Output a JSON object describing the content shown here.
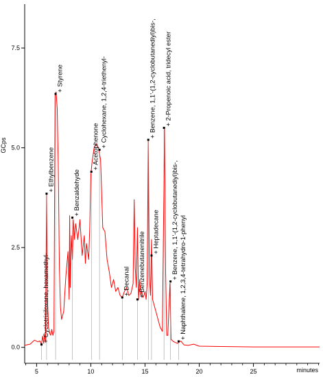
{
  "chart_data": {
    "type": "line",
    "ylabel": "GCps",
    "xlabel": "minutes",
    "xlim": [
      3.9,
      31.1
    ],
    "ylim": [
      -0.4,
      8.6
    ],
    "x_ticks": [
      5,
      10,
      15,
      20,
      25
    ],
    "y_ticks": [
      0.0,
      2.5,
      5.0,
      7.5
    ],
    "y_tick_labels": [
      "0.0",
      "2.5",
      "5.0",
      "7.5"
    ],
    "grid": false,
    "line_color": "#ff0000",
    "series": [
      {
        "values": [
          [
            3.9,
            0.05
          ],
          [
            4.4,
            0.08
          ],
          [
            4.8,
            0.18
          ],
          [
            5.1,
            0.14
          ],
          [
            5.3,
            0.16
          ],
          [
            5.45,
            0.07
          ],
          [
            5.55,
            0.28
          ],
          [
            5.65,
            0.1
          ],
          [
            5.75,
            0.32
          ],
          [
            5.82,
            0.15
          ],
          [
            5.92,
            3.85
          ],
          [
            6.0,
            1.2
          ],
          [
            6.1,
            0.5
          ],
          [
            6.2,
            0.35
          ],
          [
            6.3,
            0.3
          ],
          [
            6.4,
            0.45
          ],
          [
            6.5,
            0.3
          ],
          [
            6.6,
            0.4
          ],
          [
            6.7,
            6.3
          ],
          [
            6.8,
            6.4
          ],
          [
            6.9,
            6.0
          ],
          [
            7.0,
            4.5
          ],
          [
            7.1,
            2.0
          ],
          [
            7.2,
            1.0
          ],
          [
            7.3,
            0.7
          ],
          [
            7.5,
            0.9
          ],
          [
            7.7,
            1.8
          ],
          [
            7.9,
            2.4
          ],
          [
            8.0,
            1.2
          ],
          [
            8.05,
            3.3
          ],
          [
            8.1,
            1.5
          ],
          [
            8.2,
            2.8
          ],
          [
            8.3,
            2.2
          ],
          [
            8.4,
            3.2
          ],
          [
            8.5,
            2.7
          ],
          [
            8.6,
            3.1
          ],
          [
            8.8,
            2.7
          ],
          [
            9.0,
            3.2
          ],
          [
            9.2,
            2.3
          ],
          [
            9.4,
            2.8
          ],
          [
            9.5,
            2.1
          ],
          [
            9.6,
            2.6
          ],
          [
            9.8,
            2.2
          ],
          [
            9.9,
            3.0
          ],
          [
            10.0,
            4.3
          ],
          [
            10.1,
            4.6
          ],
          [
            10.2,
            4.8
          ],
          [
            10.3,
            5.0
          ],
          [
            10.5,
            5.1
          ],
          [
            10.7,
            5.0
          ],
          [
            10.9,
            4.7
          ],
          [
            11.0,
            3.9
          ],
          [
            11.1,
            3.0
          ],
          [
            11.3,
            2.9
          ],
          [
            11.5,
            2.2
          ],
          [
            11.7,
            1.9
          ],
          [
            11.9,
            1.5
          ],
          [
            12.1,
            1.7
          ],
          [
            12.3,
            1.4
          ],
          [
            12.5,
            1.5
          ],
          [
            12.7,
            1.3
          ],
          [
            12.9,
            1.25
          ],
          [
            13.1,
            1.4
          ],
          [
            13.3,
            1.5
          ],
          [
            13.5,
            1.3
          ],
          [
            13.7,
            1.35
          ],
          [
            13.9,
            1.6
          ],
          [
            14.0,
            3.7
          ],
          [
            14.1,
            2.0
          ],
          [
            14.2,
            1.5
          ],
          [
            14.3,
            3.0
          ],
          [
            14.4,
            1.2
          ],
          [
            14.5,
            1.7
          ],
          [
            14.6,
            1.3
          ],
          [
            14.7,
            1.4
          ],
          [
            14.8,
            1.25
          ],
          [
            14.9,
            1.3
          ],
          [
            15.0,
            1.4
          ],
          [
            15.1,
            1.2
          ],
          [
            15.2,
            1.6
          ],
          [
            15.3,
            5.2
          ],
          [
            15.4,
            1.8
          ],
          [
            15.5,
            1.3
          ],
          [
            15.6,
            2.7
          ],
          [
            15.7,
            1.2
          ],
          [
            15.8,
            1.1
          ],
          [
            15.9,
            1.0
          ],
          [
            16.0,
            0.9
          ],
          [
            16.2,
            0.7
          ],
          [
            16.4,
            0.5
          ],
          [
            16.6,
            0.4
          ],
          [
            16.8,
            5.5
          ],
          [
            16.9,
            1.9
          ],
          [
            17.0,
            0.3
          ],
          [
            17.1,
            0.3
          ],
          [
            17.3,
            1.6
          ],
          [
            17.4,
            0.2
          ],
          [
            17.6,
            0.15
          ],
          [
            17.8,
            0.12
          ],
          [
            18.0,
            0.1
          ],
          [
            18.3,
            0.16
          ],
          [
            18.6,
            0.06
          ],
          [
            19.0,
            0.05
          ],
          [
            19.5,
            0.08
          ],
          [
            20.0,
            0.03
          ],
          [
            22.0,
            0.02
          ],
          [
            25.0,
            0.01
          ],
          [
            28.0,
            0.01
          ],
          [
            31.1,
            0.01
          ]
        ]
      }
    ],
    "annotations": [
      {
        "text": "+ Cyclotrisiloxane, hexamethyl-",
        "x": 5.45,
        "y": 0.07
      },
      {
        "text": "+ Ethylbenzene",
        "x": 5.92,
        "y": 3.85
      },
      {
        "text": "+ Styrene",
        "x": 6.75,
        "y": 6.35
      },
      {
        "text": "+ Benzaldehyde",
        "x": 8.3,
        "y": 3.25
      },
      {
        "text": "+ Acetophenone",
        "x": 10.05,
        "y": 4.4
      },
      {
        "text": "+ Cyclohexane, 1,2,4-triethenyl-",
        "x": 10.8,
        "y": 4.95
      },
      {
        "text": "+ Decanal",
        "x": 12.9,
        "y": 1.25
      },
      {
        "text": "+ Benzenebutanenitrile",
        "x": 14.3,
        "y": 1.2
      },
      {
        "text": "+ Heptadecane",
        "x": 15.6,
        "y": 2.3
      },
      {
        "text": "+ Benzene, 1,1'-(1,2-cyclobutanediyl)bis-,",
        "x": 15.3,
        "y": 5.2
      },
      {
        "text": "+ 2-Propenoic acid, tridecyl ester",
        "x": 16.75,
        "y": 5.5
      },
      {
        "text": "+ Benzene, 1,1'-(1,2-cyclobutanediyl)bis-,",
        "x": 17.35,
        "y": 1.65
      },
      {
        "text": "+ Naphthalene, 1,2,3,4-tetrahydro-1-phenyl",
        "x": 18.1,
        "y": 0.15
      }
    ]
  }
}
